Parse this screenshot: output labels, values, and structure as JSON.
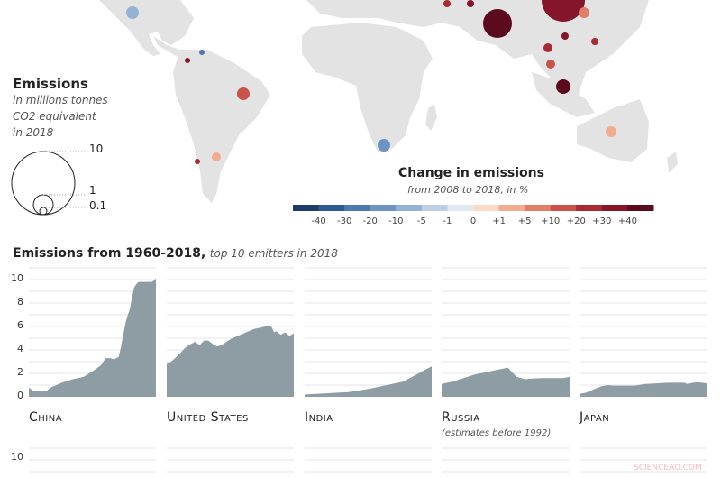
{
  "size_legend": {
    "title": "Emissions",
    "subtitle_line1": "in millions tonnes",
    "subtitle_line2": "CO2 equivalent",
    "subtitle_line3": "in 2018",
    "labels": [
      "10",
      "1",
      "0.1"
    ]
  },
  "color_legend": {
    "title": "Change in emissions",
    "subtitle": "from 2008 to 2018, in %",
    "ticks": [
      "-40",
      "-30",
      "-20",
      "-10",
      "-5",
      "-1",
      "0",
      "+1",
      "+5",
      "+10",
      "+20",
      "+30",
      "+40"
    ],
    "colors": [
      "#1f3b6b",
      "#2c5a94",
      "#4a78b0",
      "#6b93c3",
      "#93b2d6",
      "#bccfe6",
      "#e1e9f3",
      "#fbd9c6",
      "#f2ac8e",
      "#e07e67",
      "#c9524a",
      "#a82a32",
      "#84152a",
      "#5c0b1f"
    ]
  },
  "watermark": "SCIENCEAO.COM",
  "chart_data": {
    "type": "area",
    "title": "Emissions from 1960-2018,",
    "subtitle": "top 10 emitters in 2018",
    "xlabel": "",
    "ylabel": "",
    "xlim": [
      1960,
      2018
    ],
    "ylim": [
      0,
      11
    ],
    "yticks": [
      "0",
      "2",
      "4",
      "6",
      "8",
      "10"
    ],
    "grid": true,
    "fill_color": "#8e9ca3",
    "series": [
      {
        "name": "China",
        "note": "",
        "x": [
          1960,
          1962,
          1965,
          1968,
          1970,
          1975,
          1980,
          1985,
          1990,
          1993,
          1995,
          1997,
          1999,
          2001,
          2002,
          2003,
          2004,
          2005,
          2006,
          2007,
          2008,
          2009,
          2010,
          2012,
          2014,
          2016,
          2017,
          2018
        ],
        "values": [
          0.8,
          0.5,
          0.5,
          0.5,
          0.8,
          1.2,
          1.5,
          1.7,
          2.3,
          2.7,
          3.3,
          3.3,
          3.2,
          3.4,
          4.2,
          5.2,
          6.2,
          6.9,
          7.4,
          8.4,
          9.3,
          9.6,
          9.8,
          9.8,
          9.8,
          9.8,
          9.9,
          10.1
        ]
      },
      {
        "name": "United States",
        "note": "",
        "x": [
          1960,
          1962,
          1965,
          1968,
          1970,
          1973,
          1975,
          1977,
          1979,
          1981,
          1983,
          1985,
          1988,
          1990,
          1995,
          2000,
          2003,
          2005,
          2007,
          2008,
          2009,
          2010,
          2012,
          2014,
          2016,
          2018
        ],
        "values": [
          2.8,
          3.0,
          3.5,
          4.1,
          4.4,
          4.7,
          4.4,
          4.8,
          4.8,
          4.5,
          4.3,
          4.4,
          4.8,
          5.0,
          5.4,
          5.8,
          5.9,
          6.0,
          6.1,
          5.9,
          5.5,
          5.6,
          5.3,
          5.5,
          5.2,
          5.4
        ]
      },
      {
        "name": "India",
        "note": "",
        "x": [
          1960,
          1965,
          1970,
          1975,
          1980,
          1985,
          1990,
          1995,
          2000,
          2005,
          2008,
          2010,
          2012,
          2014,
          2016,
          2018
        ],
        "values": [
          0.2,
          0.25,
          0.3,
          0.35,
          0.4,
          0.55,
          0.7,
          0.9,
          1.1,
          1.3,
          1.6,
          1.8,
          2.0,
          2.2,
          2.4,
          2.6
        ]
      },
      {
        "name": "Russia",
        "note": "(estimates before 1992)",
        "x": [
          1960,
          1965,
          1970,
          1975,
          1980,
          1985,
          1988,
          1990,
          1991,
          1992,
          1994,
          1996,
          1998,
          2000,
          2005,
          2010,
          2015,
          2018
        ],
        "values": [
          1.1,
          1.3,
          1.6,
          1.9,
          2.1,
          2.3,
          2.4,
          2.5,
          2.3,
          2.1,
          1.7,
          1.6,
          1.5,
          1.55,
          1.6,
          1.6,
          1.6,
          1.7
        ]
      },
      {
        "name": "Japan",
        "note": "",
        "x": [
          1960,
          1963,
          1966,
          1970,
          1973,
          1975,
          1980,
          1985,
          1990,
          1995,
          2000,
          2005,
          2008,
          2009,
          2012,
          2014,
          2016,
          2018
        ],
        "values": [
          0.25,
          0.35,
          0.6,
          0.9,
          1.0,
          0.95,
          0.95,
          0.95,
          1.1,
          1.15,
          1.2,
          1.2,
          1.2,
          1.1,
          1.2,
          1.25,
          1.2,
          1.15
        ]
      }
    ]
  }
}
